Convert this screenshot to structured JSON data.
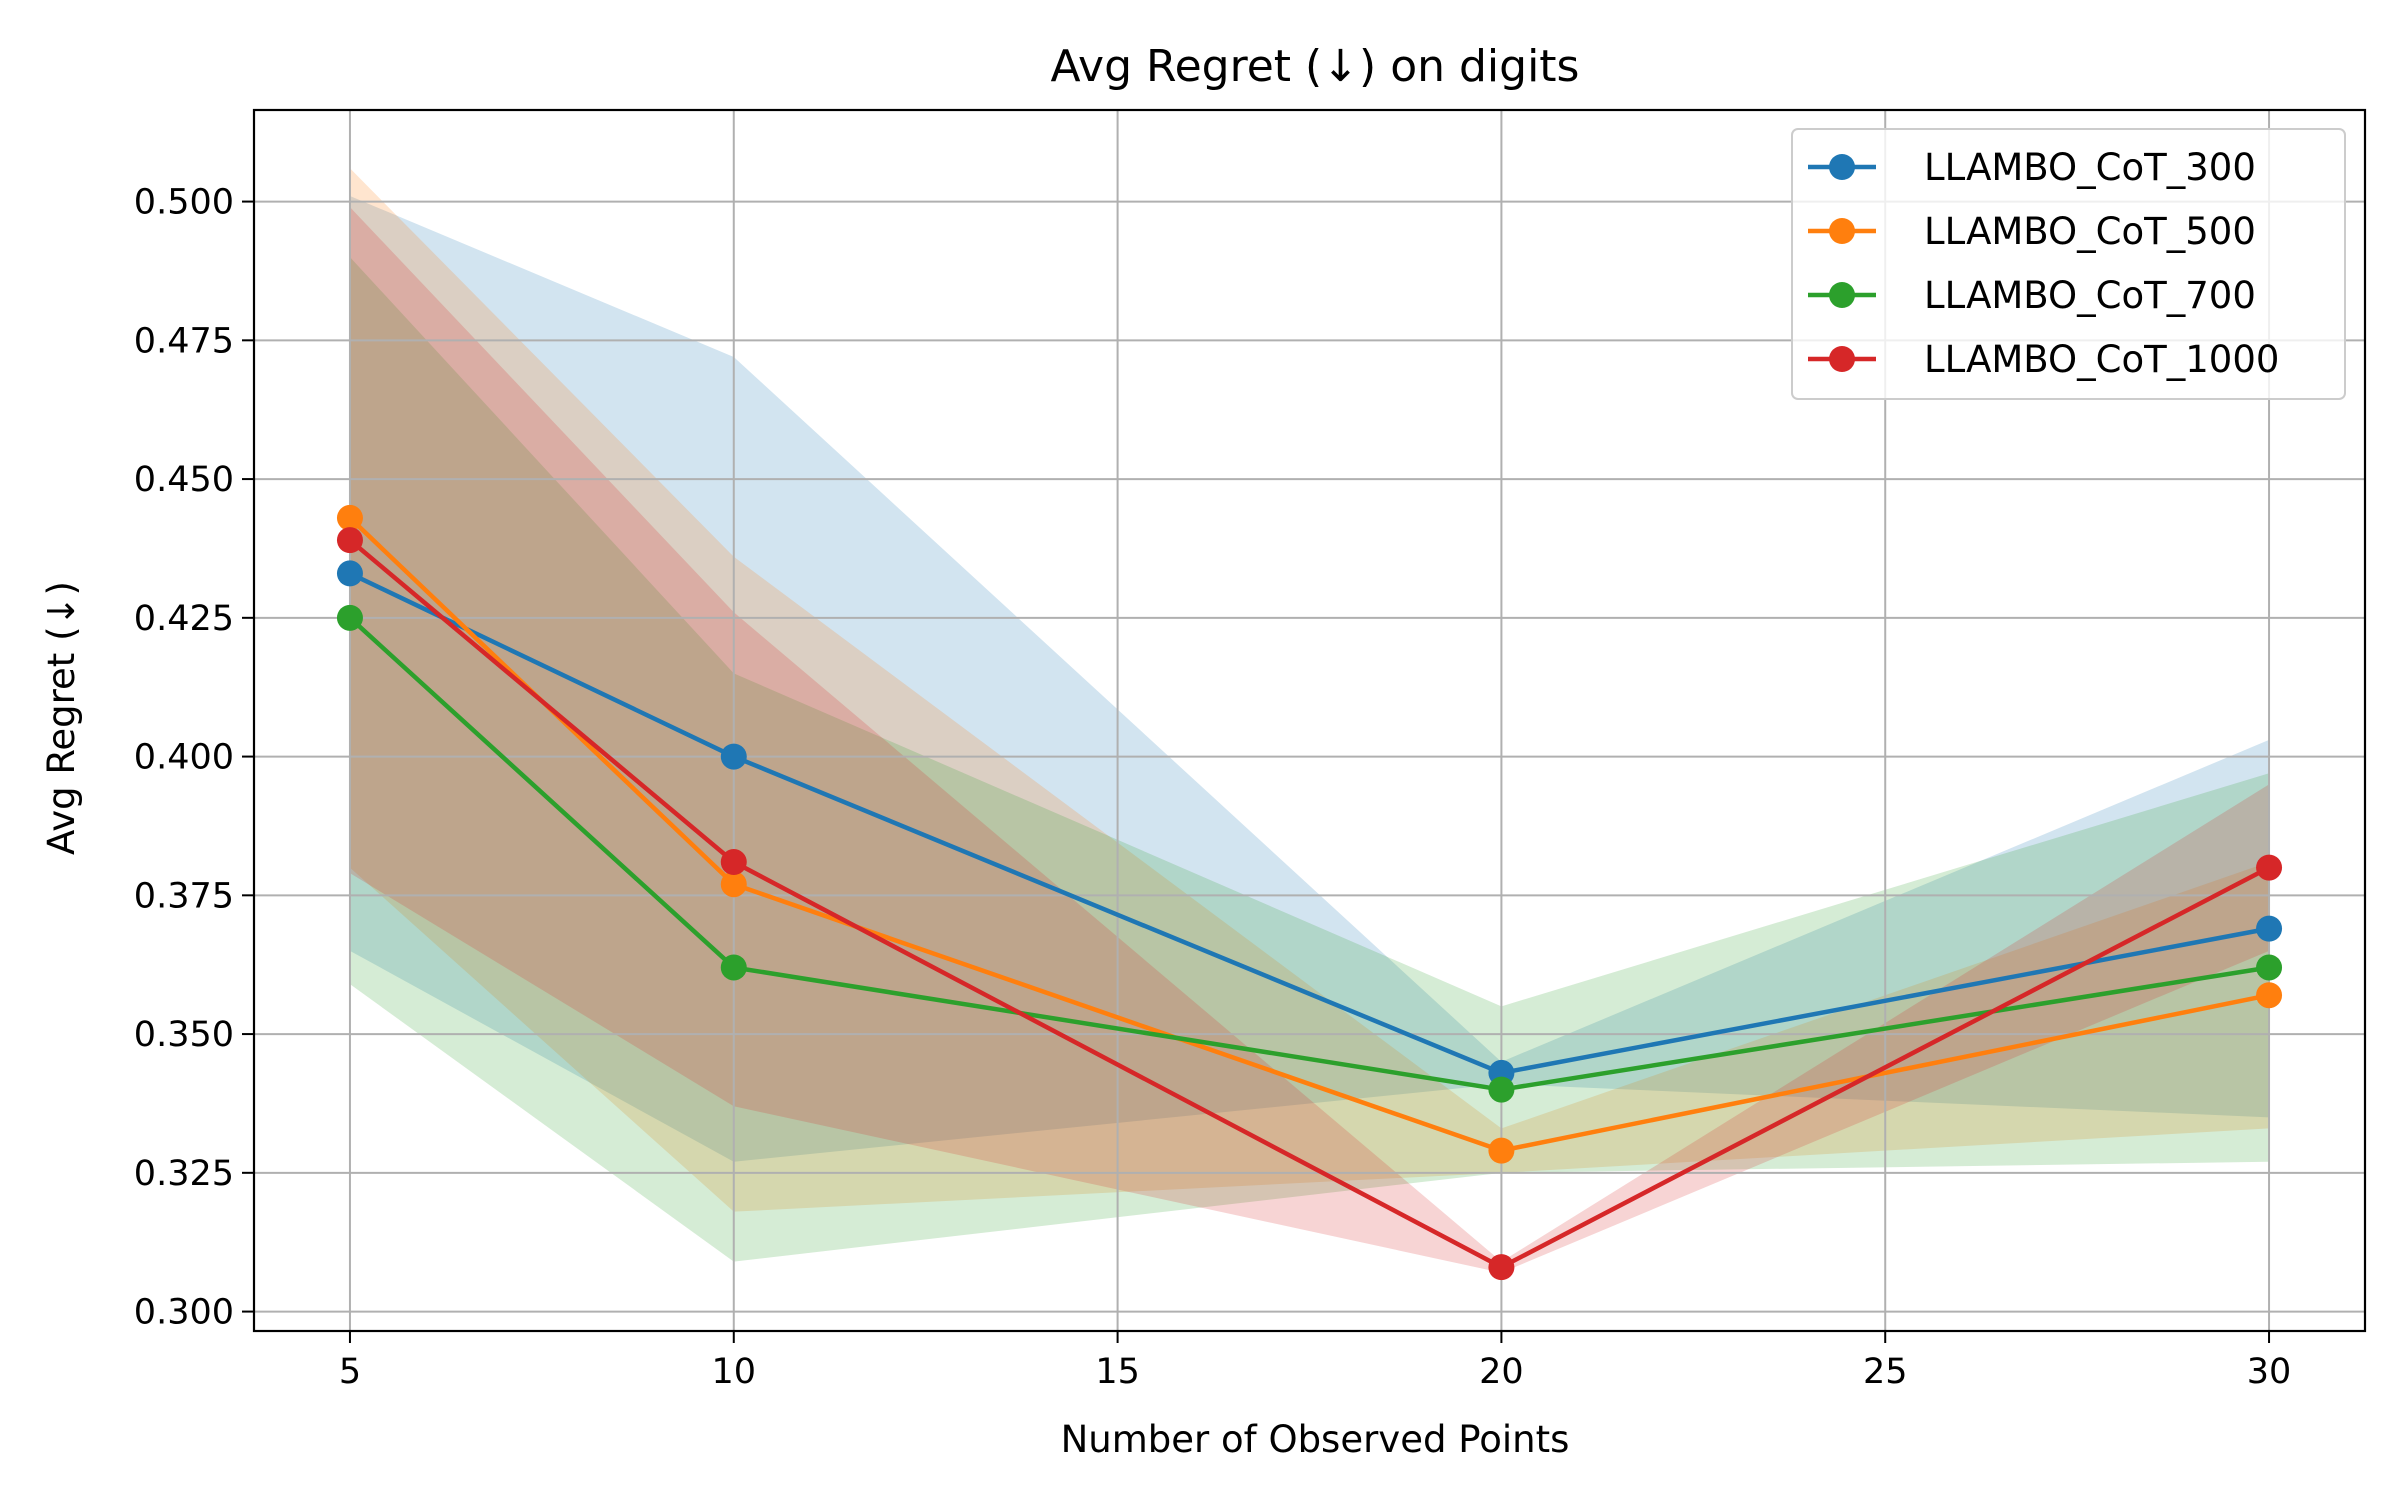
{
  "chart_data": {
    "type": "line",
    "title": "Avg Regret (↓) on digits",
    "xlabel": "Number of Observed Points",
    "ylabel": "Avg Regret (↓)",
    "x": [
      5,
      10,
      20,
      30
    ],
    "xlim": [
      3.75,
      31.25
    ],
    "ylim": [
      0.2965,
      0.5165
    ],
    "xticks": [
      5,
      10,
      15,
      20,
      25,
      30
    ],
    "xtick_labels": [
      "5",
      "10",
      "15",
      "20",
      "25",
      "30"
    ],
    "yticks": [
      0.3,
      0.325,
      0.35,
      0.375,
      0.4,
      0.425,
      0.45,
      0.475,
      0.5
    ],
    "ytick_labels": [
      "0.300",
      "0.325",
      "0.350",
      "0.375",
      "0.400",
      "0.425",
      "0.450",
      "0.475",
      "0.500"
    ],
    "grid": true,
    "legend_position": "top-right",
    "series": [
      {
        "name": "LLAMBO_CoT_300",
        "color": "#1f77b4",
        "values": [
          0.433,
          0.4,
          0.343,
          0.369
        ],
        "band_lower": [
          0.365,
          0.327,
          0.341,
          0.335
        ],
        "band_upper": [
          0.501,
          0.472,
          0.345,
          0.403
        ]
      },
      {
        "name": "LLAMBO_CoT_500",
        "color": "#ff7f0e",
        "values": [
          0.443,
          0.377,
          0.329,
          0.357
        ],
        "band_lower": [
          0.38,
          0.318,
          0.325,
          0.333
        ],
        "band_upper": [
          0.506,
          0.436,
          0.333,
          0.381
        ]
      },
      {
        "name": "LLAMBO_CoT_700",
        "color": "#2ca02c",
        "values": [
          0.425,
          0.362,
          0.34,
          0.362
        ],
        "band_lower": [
          0.359,
          0.309,
          0.325,
          0.327
        ],
        "band_upper": [
          0.49,
          0.415,
          0.355,
          0.397
        ]
      },
      {
        "name": "LLAMBO_CoT_1000",
        "color": "#d62728",
        "values": [
          0.439,
          0.381,
          0.308,
          0.38
        ],
        "band_lower": [
          0.379,
          0.337,
          0.307,
          0.365
        ],
        "band_upper": [
          0.499,
          0.426,
          0.309,
          0.395
        ]
      }
    ]
  }
}
